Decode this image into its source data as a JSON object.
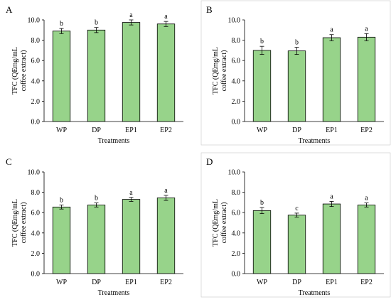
{
  "chart_data": [
    {
      "panel": "A",
      "type": "bar",
      "categories": [
        "WP",
        "DP",
        "EP1",
        "EP2"
      ],
      "values": [
        8.9,
        9.0,
        9.75,
        9.6
      ],
      "errors": [
        0.25,
        0.25,
        0.25,
        0.25
      ],
      "letters": [
        "b",
        "b",
        "a",
        "a"
      ],
      "ylabel_line1": "TFC (QEmg/mL",
      "ylabel_line2": "coffee extract)",
      "xlabel": "Treatments",
      "yticks": [
        "0.0",
        "2.0",
        "4.0",
        "6.0",
        "8.0",
        "10.0"
      ],
      "ylim": [
        0,
        10
      ]
    },
    {
      "panel": "B",
      "type": "bar",
      "categories": [
        "WP",
        "DP",
        "EP1",
        "EP2"
      ],
      "values": [
        7.0,
        6.95,
        8.25,
        8.3
      ],
      "errors": [
        0.4,
        0.35,
        0.3,
        0.35
      ],
      "letters": [
        "b",
        "b",
        "a",
        "a"
      ],
      "ylabel_line1": "TFC (QEmg/mL",
      "ylabel_line2": "coffee extract)",
      "xlabel": "Treatments",
      "yticks": [
        "0.0",
        "2.0",
        "4.0",
        "6.0",
        "8.0",
        "10.0"
      ],
      "ylim": [
        0,
        10
      ]
    },
    {
      "panel": "C",
      "type": "bar",
      "categories": [
        "WP",
        "DP",
        "EP1",
        "EP2"
      ],
      "values": [
        6.55,
        6.75,
        7.3,
        7.45
      ],
      "errors": [
        0.2,
        0.2,
        0.2,
        0.25
      ],
      "letters": [
        "b",
        "b",
        "a",
        "a"
      ],
      "ylabel_line1": "TFC (QEmg/mL",
      "ylabel_line2": "coffee extract)",
      "xlabel": "Treatments",
      "yticks": [
        "0.0",
        "2.0",
        "4.0",
        "6.0",
        "8.0",
        "10.0"
      ],
      "ylim": [
        0,
        10
      ]
    },
    {
      "panel": "D",
      "type": "bar",
      "categories": [
        "WP",
        "DP",
        "EP1",
        "EP2"
      ],
      "values": [
        6.2,
        5.75,
        6.85,
        6.75
      ],
      "errors": [
        0.3,
        0.2,
        0.25,
        0.2
      ],
      "letters": [
        "b",
        "c",
        "a",
        "a"
      ],
      "ylabel_line1": "TFC (QEmg/mL",
      "ylabel_line2": "coffee extract)",
      "xlabel": "Treatments",
      "yticks": [
        "0.0",
        "2.0",
        "4.0",
        "6.0",
        "8.0",
        "10.0"
      ],
      "ylim": [
        0,
        10
      ]
    }
  ],
  "colors": {
    "bar_fill": "#97d38a",
    "bar_stroke": "#000000",
    "panel_frame": "#c8c8c8"
  }
}
